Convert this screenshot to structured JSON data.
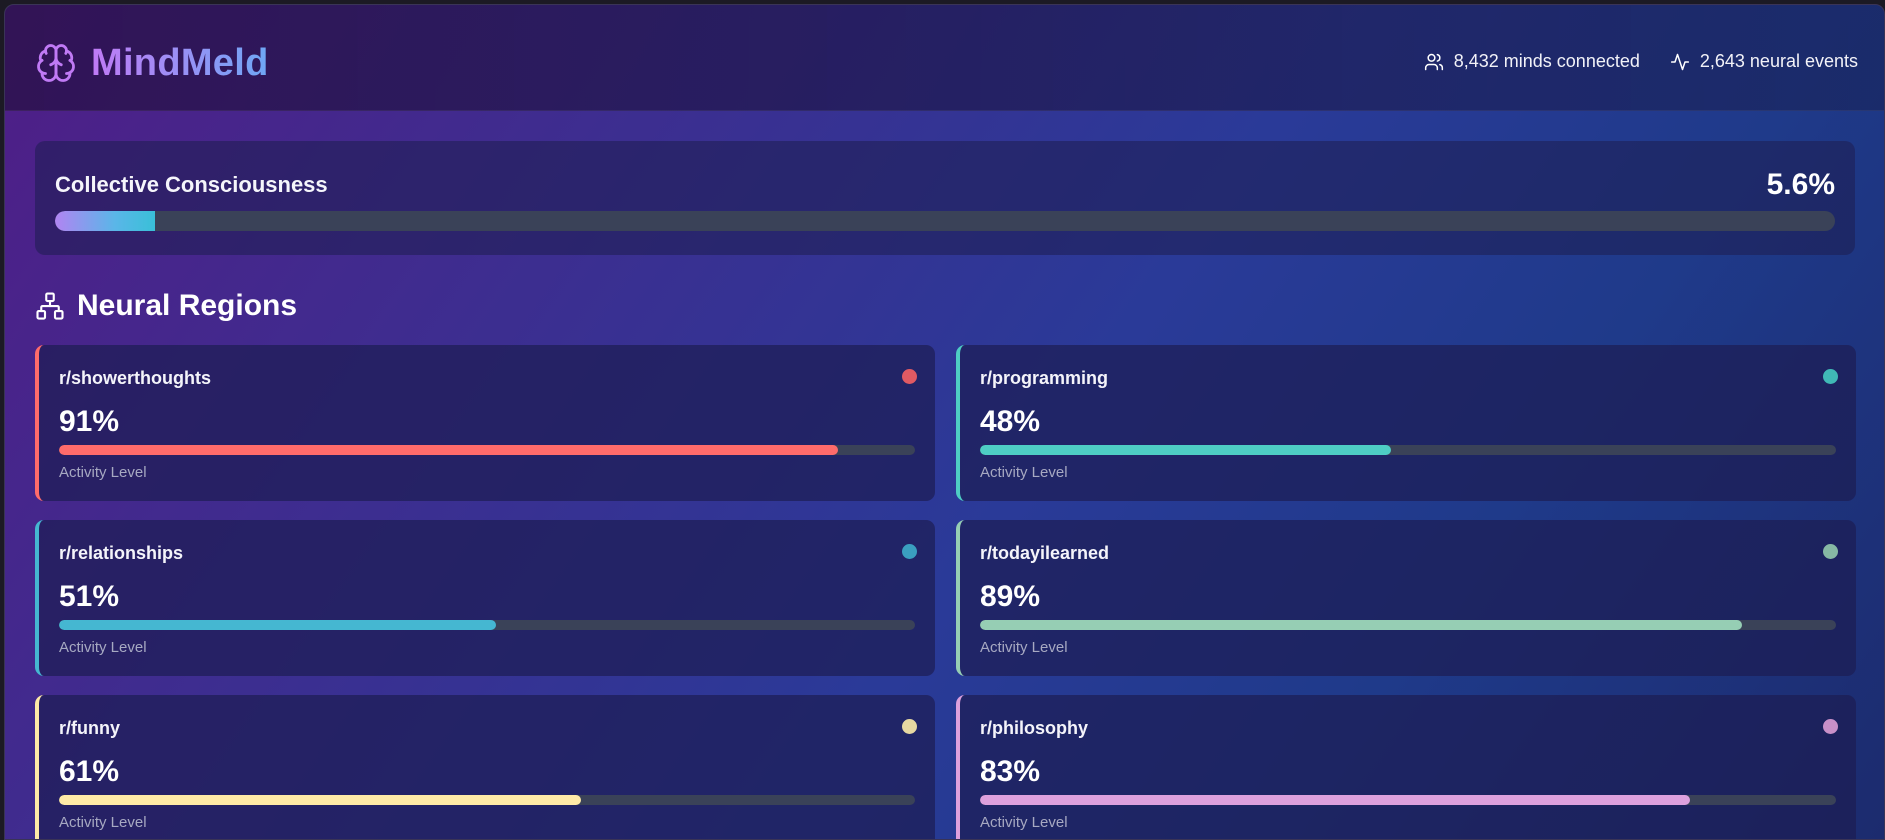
{
  "app": {
    "name": "MindMeld"
  },
  "header_stats": {
    "minds": "8,432 minds connected",
    "events": "2,643 neural events"
  },
  "collective": {
    "title": "Collective Consciousness",
    "value": "5.6%",
    "fraction": 0.056
  },
  "section": {
    "title": "Neural Regions"
  },
  "regions": [
    {
      "name": "r/showerthoughts",
      "pct": "91%",
      "level": 0.91,
      "caption": "Activity Level",
      "color": "#ff6b6b",
      "dot": "#e05a63"
    },
    {
      "name": "r/programming",
      "pct": "48%",
      "level": 0.48,
      "caption": "Activity Level",
      "color": "#4ecdc4",
      "dot": "#40b9b6"
    },
    {
      "name": "r/relationships",
      "pct": "51%",
      "level": 0.51,
      "caption": "Activity Level",
      "color": "#45b7d1",
      "dot": "#3a9fc0"
    },
    {
      "name": "r/todayilearned",
      "pct": "89%",
      "level": 0.89,
      "caption": "Activity Level",
      "color": "#96ceb4",
      "dot": "#86b8a4"
    },
    {
      "name": "r/funny",
      "pct": "61%",
      "level": 0.61,
      "caption": "Activity Level",
      "color": "#ffeaa7",
      "dot": "#e6d8a2"
    },
    {
      "name": "r/philosophy",
      "pct": "83%",
      "level": 0.83,
      "caption": "Activity Level",
      "color": "#dda0dd",
      "dot": "#c890c8"
    }
  ]
}
